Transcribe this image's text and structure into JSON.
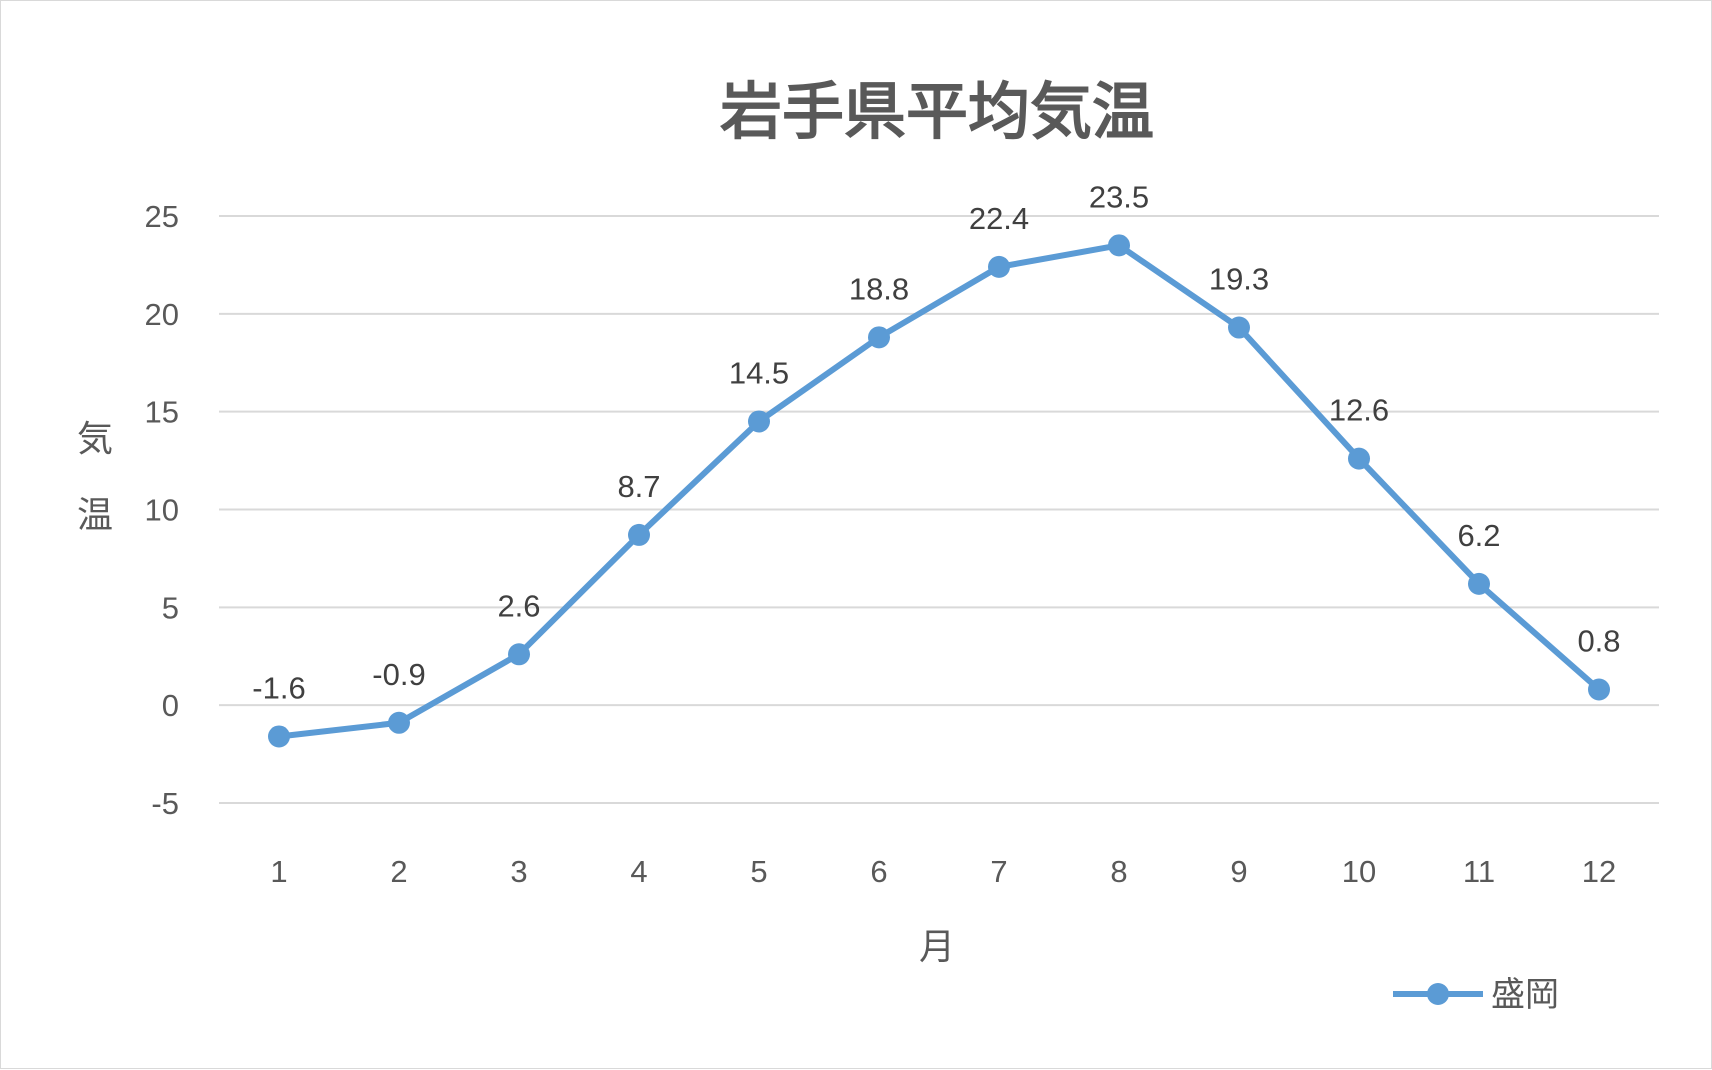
{
  "chart_data": {
    "type": "line",
    "title": "岩手県平均気温",
    "xlabel": "月",
    "ylabel": "気温",
    "categories": [
      "1",
      "2",
      "3",
      "4",
      "5",
      "6",
      "7",
      "8",
      "9",
      "10",
      "11",
      "12"
    ],
    "series": [
      {
        "name": "盛岡",
        "values": [
          -1.6,
          -0.9,
          2.6,
          8.7,
          14.5,
          18.8,
          22.4,
          23.5,
          19.3,
          12.6,
          6.2,
          0.8
        ],
        "color": "#5b9bd5",
        "marker": "circle",
        "data_labels": [
          "-1.6",
          "-0.9",
          "2.6",
          "8.7",
          "14.5",
          "18.8",
          "22.4",
          "23.5",
          "19.3",
          "12.6",
          "6.2",
          "0.8"
        ]
      }
    ],
    "ylim": [
      -5,
      25
    ],
    "yticks": [
      "-5",
      "0",
      "5",
      "10",
      "15",
      "20",
      "25"
    ],
    "grid": true,
    "gridline_color": "#d9d9d9",
    "legend": "bottom-right"
  }
}
